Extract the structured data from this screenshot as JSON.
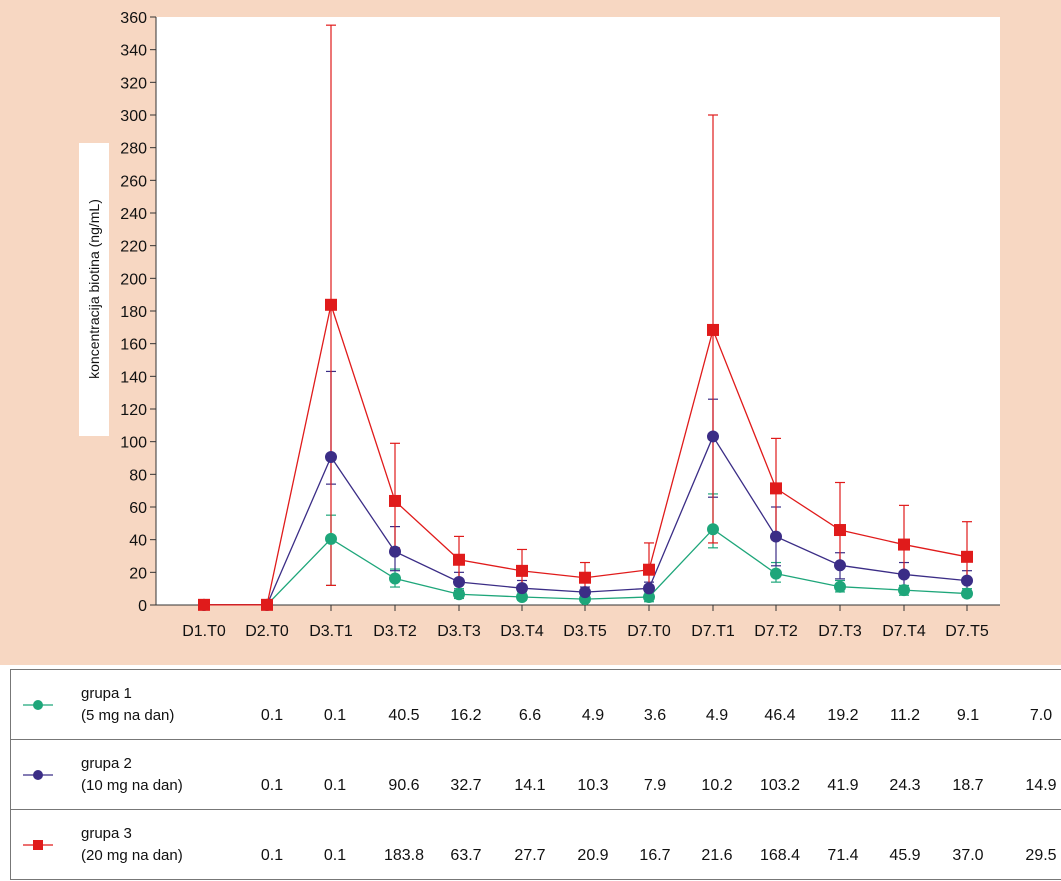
{
  "chart_data": {
    "type": "line",
    "ylabel": "koncentracija biotina (ng/mL)",
    "xlabel": "",
    "ylim": [
      0,
      360
    ],
    "yticks": [
      0,
      20,
      40,
      60,
      80,
      100,
      120,
      140,
      160,
      180,
      200,
      220,
      240,
      260,
      280,
      300,
      320,
      340,
      360
    ],
    "categories": [
      "D1.T0",
      "D2.T0",
      "D3.T1",
      "D3.T2",
      "D3.T3",
      "D3.T4",
      "D3.T5",
      "D7.T0",
      "D7.T1",
      "D7.T2",
      "D7.T3",
      "D7.T4",
      "D7.T5"
    ],
    "series": [
      {
        "name": "grupa 1",
        "name_line2": "(5 mg na dan)",
        "color": "#1ea67a",
        "marker": "circle",
        "values": [
          0.1,
          0.1,
          40.5,
          16.2,
          6.6,
          4.9,
          3.6,
          4.9,
          46.4,
          19.2,
          11.2,
          9.1,
          7.0
        ],
        "table_values": [
          "0.1",
          "0.1",
          "40.5",
          "16.2",
          "6.6",
          "4.9",
          "3.6",
          "4.9",
          "46.4",
          "19.2",
          "11.2",
          "9.1",
          "7.0"
        ],
        "error_upper": [
          0,
          0,
          55,
          22,
          10,
          8,
          6,
          8,
          68,
          26,
          15,
          12,
          10
        ],
        "error_lower": [
          0,
          0,
          12,
          11,
          4,
          3,
          2,
          2,
          35,
          14,
          8,
          6,
          5
        ]
      },
      {
        "name": "grupa 2",
        "name_line2": "(10 mg na dan)",
        "color": "#3b2d86",
        "marker": "circle",
        "values": [
          0.1,
          0.1,
          90.6,
          32.7,
          14.1,
          10.3,
          7.9,
          10.2,
          103.2,
          41.9,
          24.3,
          18.7,
          14.9
        ],
        "table_values": [
          "0.1",
          "0.1",
          "90.6",
          "32.7",
          "14.1",
          "10.3",
          "7.9",
          "10.2",
          "103.2",
          "41.9",
          "24.3",
          "18.7",
          "14.9"
        ],
        "error_upper": [
          0,
          0,
          143,
          48,
          20,
          15,
          11,
          14,
          126,
          60,
          32,
          26,
          21
        ],
        "error_lower": [
          0,
          0,
          74,
          21,
          9,
          6,
          5,
          6,
          66,
          24,
          16,
          11,
          9
        ]
      },
      {
        "name": "grupa 3",
        "name_line2": "(20 mg na dan)",
        "color": "#e01b1b",
        "marker": "square",
        "values": [
          0.1,
          0.1,
          183.8,
          63.7,
          27.7,
          20.9,
          16.7,
          21.6,
          168.4,
          71.4,
          45.9,
          37.0,
          29.5
        ],
        "table_values": [
          "0.1",
          "0.1",
          "183.8",
          "63.7",
          "27.7",
          "20.9",
          "16.7",
          "21.6",
          "168.4",
          "71.4",
          "45.9",
          "37.0",
          "29.5"
        ],
        "error_upper": [
          0,
          0,
          355,
          99,
          42,
          34,
          26,
          38,
          300,
          102,
          75,
          61,
          51
        ],
        "error_lower": [
          0,
          0,
          12,
          35,
          15,
          10,
          9,
          10,
          38,
          40,
          25,
          20,
          16
        ]
      }
    ]
  }
}
